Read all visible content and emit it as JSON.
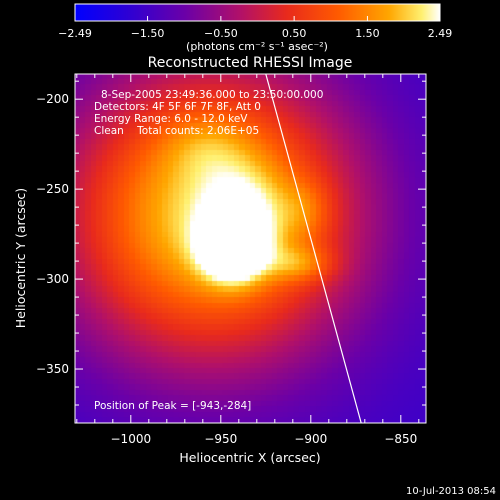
{
  "chart_data": {
    "type": "heatmap",
    "title": "Reconstructed RHESSI Image",
    "xlabel": "Heliocentric X (arcsec)",
    "ylabel": "Heliocentric Y (arcsec)",
    "xlim": [
      -1031,
      -836
    ],
    "ylim": [
      -380,
      -186
    ],
    "x_ticks": [
      -1000,
      -950,
      -900,
      -850
    ],
    "x_tick_labels": [
      "−1000",
      "−950",
      "−900",
      "−850"
    ],
    "y_ticks": [
      -200,
      -250,
      -300,
      -350
    ],
    "y_tick_labels": [
      "−200",
      "−250",
      "−300",
      "−350"
    ],
    "colorbar": {
      "vmin": -2.49,
      "vmax": 2.49,
      "ticks": [
        -2.49,
        -1.5,
        -0.5,
        0.5,
        1.5,
        2.49
      ],
      "tick_labels": [
        "−2.49",
        "−1.50",
        "−0.50",
        "0.50",
        "1.50",
        "2.49"
      ],
      "label": "(photons cm⁻² s⁻¹ asec⁻²)"
    },
    "annotations": [
      "8-Sep-2005 23:49:36.000 to 23:50:00.000",
      "Detectors: 4F 5F 6F 7F 8F, Att 0",
      "Energy Range: 6.0 - 12.0 keV",
      "Clean    Total counts: 2.06E+05",
      "Position of Peak = [-943,-284]"
    ],
    "peak": {
      "x": -943,
      "y": -284
    },
    "limb_line": [
      [
        -925,
        -186
      ],
      [
        -872,
        -380
      ]
    ],
    "sources": [
      {
        "x": -955,
        "y": -265,
        "sx": 58,
        "sy": 58,
        "amp": 1.6
      },
      {
        "x": -943,
        "y": -284,
        "sx": 12,
        "sy": 12,
        "amp": 1.0
      },
      {
        "x": -935,
        "y": -265,
        "sx": 16,
        "sy": 20,
        "amp": 0.35
      },
      {
        "x": -905,
        "y": -292,
        "sx": 13,
        "sy": 7,
        "amp": 0.4
      },
      {
        "x": -902,
        "y": -262,
        "sx": 10,
        "sy": 12,
        "amp": 0.25
      },
      {
        "x": -958,
        "y": -225,
        "sx": 18,
        "sy": 14,
        "amp": 0.22
      }
    ],
    "background_level": -1.6,
    "footer": "10-Jul-2013 08:54"
  }
}
